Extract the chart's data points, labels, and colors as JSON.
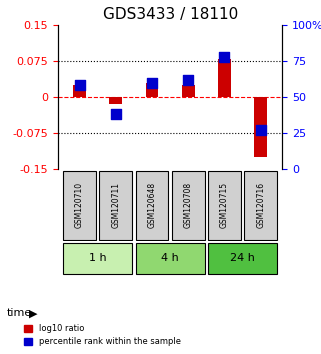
{
  "title": "GDS3433 / 18110",
  "samples": [
    "GSM120710",
    "GSM120711",
    "GSM120648",
    "GSM120708",
    "GSM120715",
    "GSM120716"
  ],
  "log10_ratio": [
    0.025,
    -0.015,
    0.03,
    0.025,
    0.078,
    -0.125
  ],
  "percentile_rank": [
    58,
    38,
    60,
    62,
    78,
    27
  ],
  "groups": [
    {
      "label": "1 h",
      "indices": [
        0,
        1
      ],
      "color": "#c8f0b0"
    },
    {
      "label": "4 h",
      "indices": [
        2,
        3
      ],
      "color": "#90d870"
    },
    {
      "label": "24 h",
      "indices": [
        4,
        5
      ],
      "color": "#50c040"
    }
  ],
  "ylim_left": [
    -0.15,
    0.15
  ],
  "ylim_right": [
    0,
    100
  ],
  "yticks_left": [
    -0.15,
    -0.075,
    0,
    0.075,
    0.15
  ],
  "yticks_right": [
    0,
    25,
    50,
    75,
    100
  ],
  "ytick_labels_left": [
    "-0.15",
    "-0.075",
    "0",
    "0.075",
    "0.15"
  ],
  "ytick_labels_right": [
    "0",
    "25",
    "50",
    "75",
    "100%"
  ],
  "hlines": [
    0.075,
    -0.075
  ],
  "bar_color": "#cc0000",
  "square_color": "#0000cc",
  "bar_width": 0.35,
  "square_size": 60,
  "xlabel_time": "time",
  "legend_red": "log10 ratio",
  "legend_blue": "percentile rank within the sample",
  "title_fontsize": 11,
  "axis_label_fontsize": 8,
  "tick_fontsize": 8
}
